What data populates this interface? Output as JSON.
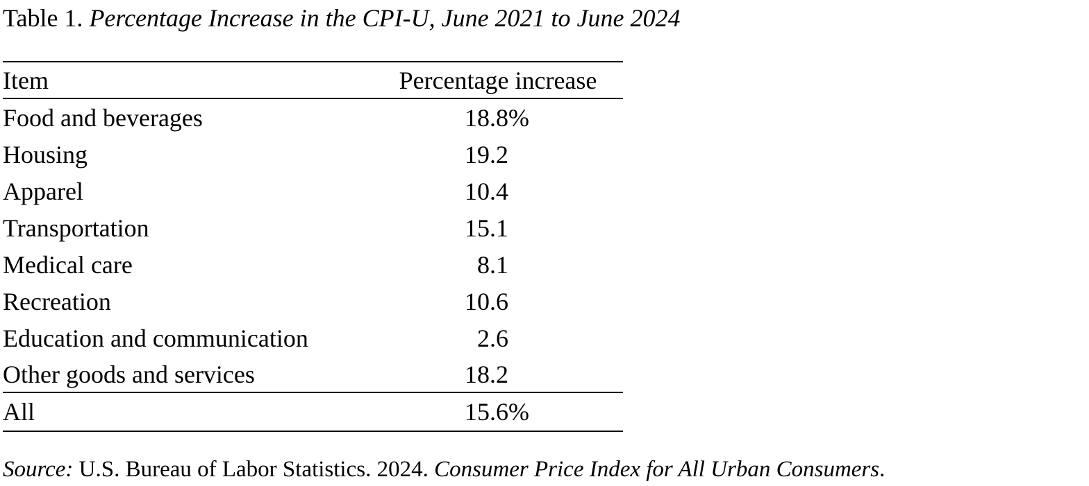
{
  "page": {
    "title_prefix": "Table 1. ",
    "title_italic": "Percentage Increase in the CPI-U, June 2021 to June 2024"
  },
  "table": {
    "col_item": "Item",
    "col_value": "Percentage increase",
    "rows": [
      {
        "item": "Food and beverages",
        "num": "18.8",
        "suffix": "%"
      },
      {
        "item": "Housing",
        "num": "19.2",
        "suffix": ""
      },
      {
        "item": "Apparel",
        "num": "10.4",
        "suffix": ""
      },
      {
        "item": "Transportation",
        "num": "15.1",
        "suffix": ""
      },
      {
        "item": "Medical care",
        "num": "8.1",
        "suffix": ""
      },
      {
        "item": "Recreation",
        "num": "10.6",
        "suffix": ""
      },
      {
        "item": "Education and communication",
        "num": "2.6",
        "suffix": ""
      },
      {
        "item": "Other goods and services",
        "num": "18.2",
        "suffix": ""
      }
    ],
    "total": {
      "item": "All",
      "num": "15.6",
      "suffix": "%"
    }
  },
  "source": {
    "label_italic": "Source:",
    "middle": " U.S. Bureau of Labor Statistics. 2024. ",
    "work_italic": "Consumer Price Index for All Urban Consumers",
    "end": "."
  },
  "colors": {
    "text": "#000000",
    "background": "#ffffff",
    "rule": "#000000"
  }
}
